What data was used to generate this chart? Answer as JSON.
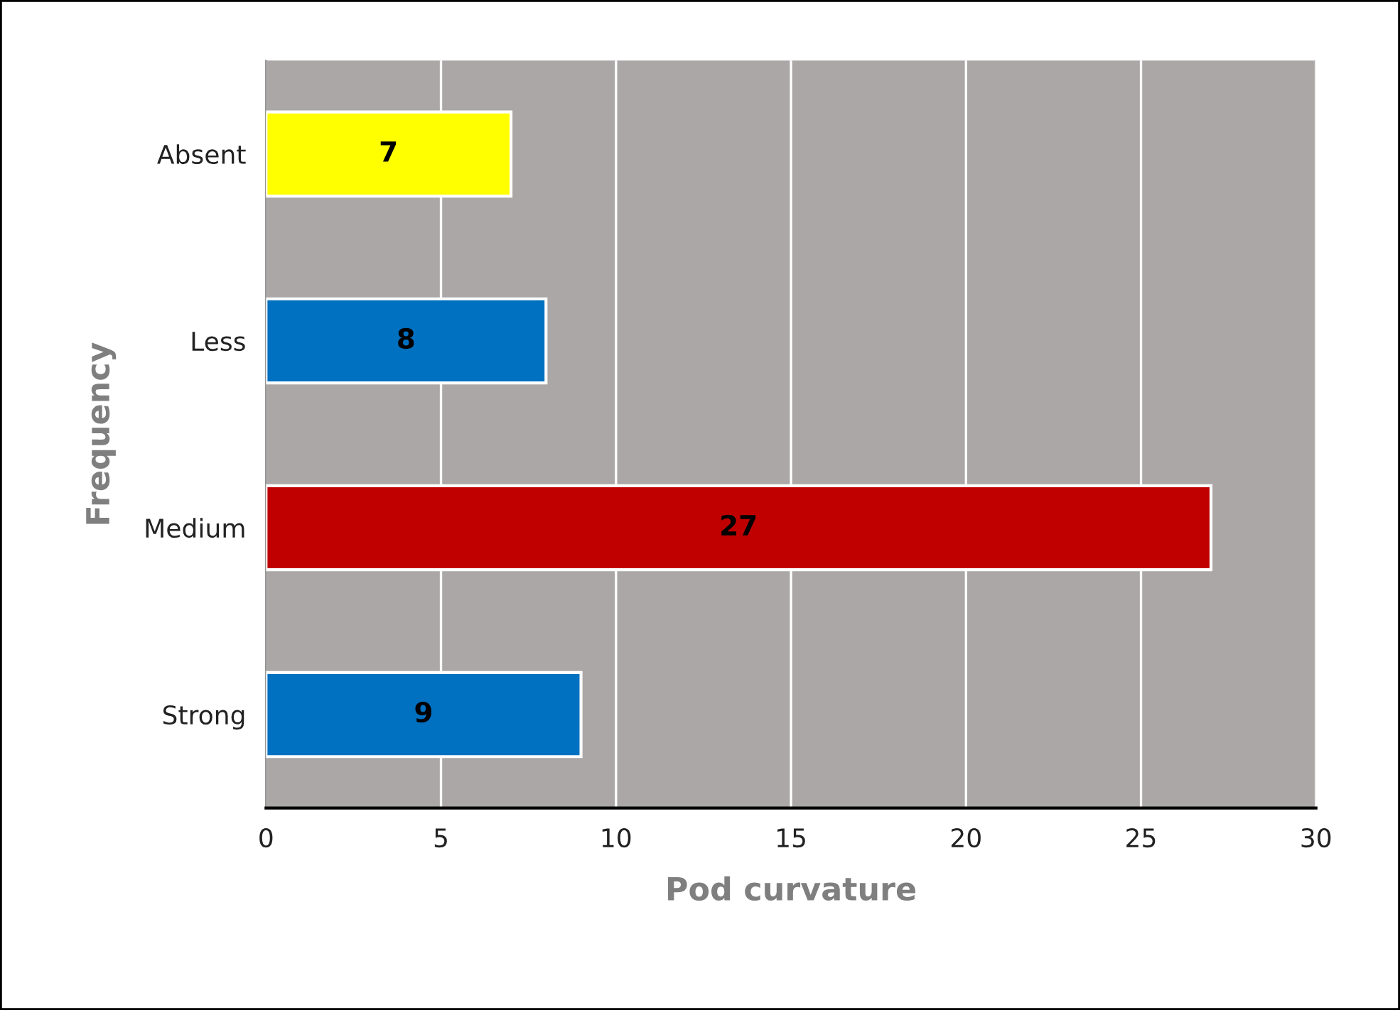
{
  "chart_data": {
    "type": "bar",
    "orientation": "horizontal",
    "categories": [
      "Absent",
      "Less",
      "Medium",
      "Strong"
    ],
    "values": [
      7,
      8,
      27,
      9
    ],
    "colors": [
      "#ffff00",
      "#0070c0",
      "#c00000",
      "#0070c0"
    ],
    "xlabel": "Pod curvature",
    "ylabel": "Frequency",
    "xlim": [
      0,
      30
    ],
    "xticks": [
      0,
      5,
      10,
      15,
      20,
      25,
      30
    ],
    "grid": "x",
    "data_labels": true,
    "legend": false
  }
}
